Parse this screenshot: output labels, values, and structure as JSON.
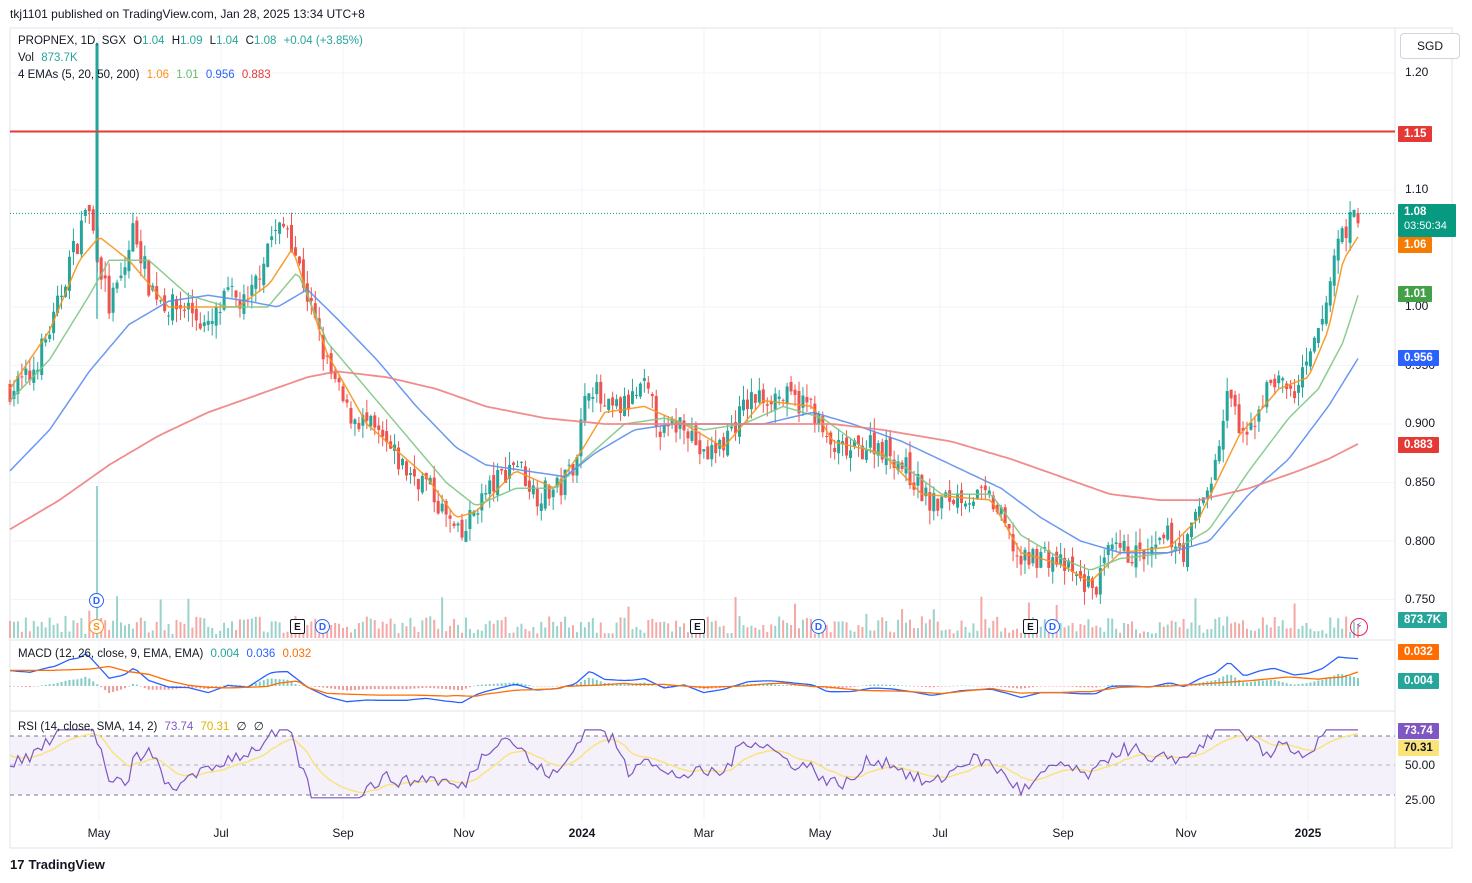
{
  "publisher": "tkj1101 published on TradingView.com, Jan 28, 2025 13:34 UTC+8",
  "brand": "TradingView",
  "brand_logo": "17",
  "currency_button": "SGD",
  "legend": {
    "symbol_line": "PROPNEX, 1D, SGX",
    "ohlc": {
      "o_label": "O",
      "o": "1.04",
      "h_label": "H",
      "h": "1.09",
      "l_label": "L",
      "l": "1.04",
      "c_label": "C",
      "c": "1.08",
      "chg": "+0.04 (+3.85%)"
    },
    "vol_label": "Vol",
    "vol_value": "873.7K",
    "ema_label": "4 EMAs (5, 20, 50, 200)",
    "ema_values": [
      "1.06",
      "1.01",
      "0.956",
      "0.883"
    ],
    "macd_label": "MACD (12, 26, close, 9, EMA, EMA)",
    "macd_values": [
      "0.004",
      "0.036",
      "0.032"
    ],
    "rsi_label": "RSI (14, close, SMA, 14, 2)",
    "rsi_values": [
      "73.74",
      "70.31",
      "∅",
      "∅"
    ]
  },
  "price_tags": {
    "resistance": "1.15",
    "last": "1.08",
    "countdown": "03:50:34",
    "ema5": "1.06",
    "ema20": "1.01",
    "ema50": "0.956",
    "ema200": "0.883",
    "volume": "873.7K",
    "macd_signal": "0.032",
    "macd_hist": "0.004",
    "rsi": "73.74",
    "rsi_ma": "70.31"
  },
  "y_axis_labels": [
    "1.20",
    "1.10",
    "1.00",
    "0.950",
    "0.900",
    "0.850",
    "0.800",
    "0.750"
  ],
  "rsi_axis_labels": [
    "50.00",
    "25.00"
  ],
  "x_axis_labels": [
    "May",
    "Jul",
    "Sep",
    "Nov",
    "2024",
    "Mar",
    "May",
    "Jul",
    "Sep",
    "Nov",
    "2025"
  ],
  "events": [
    {
      "kind": "d",
      "label": "D"
    },
    {
      "kind": "s",
      "label": "S"
    },
    {
      "kind": "e",
      "label": "E"
    },
    {
      "kind": "d",
      "label": "D"
    },
    {
      "kind": "e",
      "label": "E"
    },
    {
      "kind": "d",
      "label": "D"
    },
    {
      "kind": "e",
      "label": "E"
    },
    {
      "kind": "d",
      "label": "D"
    }
  ],
  "colors": {
    "up": "#26a69a",
    "down": "#ef5350",
    "ema5": "#f7931a",
    "ema20": "#81c784",
    "ema50": "#5b8def",
    "ema200": "#f08080",
    "resistance": "#e53935",
    "macd": "#2962ff",
    "signal": "#ff6d00",
    "rsi": "#7e57c2",
    "rsi_ma": "#f9e37a"
  },
  "chart_data": {
    "type": "candlestick",
    "symbol": "PROPNEX",
    "interval": "1D",
    "exchange": "SGX",
    "y_range": [
      0.735,
      1.225
    ],
    "resistance_level": 1.15,
    "anchors": {
      "close": [
        [
          0,
          0.93
        ],
        [
          20,
          0.94
        ],
        [
          45,
          0.99
        ],
        [
          60,
          1.04
        ],
        [
          70,
          1.06
        ],
        [
          77,
          1.09
        ],
        [
          85,
          1.06
        ],
        [
          100,
          1.0
        ],
        [
          115,
          1.03
        ],
        [
          125,
          1.07
        ],
        [
          140,
          1.02
        ],
        [
          160,
          1.0
        ],
        [
          180,
          1.0
        ],
        [
          200,
          0.98
        ],
        [
          220,
          1.01
        ],
        [
          240,
          1.0
        ],
        [
          262,
          1.06
        ],
        [
          280,
          1.07
        ],
        [
          300,
          1.01
        ],
        [
          320,
          0.95
        ],
        [
          340,
          0.91
        ],
        [
          360,
          0.9
        ],
        [
          380,
          0.88
        ],
        [
          400,
          0.86
        ],
        [
          420,
          0.85
        ],
        [
          440,
          0.82
        ],
        [
          455,
          0.8
        ],
        [
          470,
          0.83
        ],
        [
          490,
          0.85
        ],
        [
          510,
          0.87
        ],
        [
          530,
          0.84
        ],
        [
          555,
          0.845
        ],
        [
          570,
          0.87
        ],
        [
          585,
          0.94
        ],
        [
          600,
          0.91
        ],
        [
          620,
          0.915
        ],
        [
          640,
          0.93
        ],
        [
          660,
          0.89
        ],
        [
          680,
          0.905
        ],
        [
          700,
          0.87
        ],
        [
          720,
          0.885
        ],
        [
          745,
          0.92
        ],
        [
          770,
          0.925
        ],
        [
          790,
          0.92
        ],
        [
          810,
          0.915
        ],
        [
          825,
          0.88
        ],
        [
          850,
          0.875
        ],
        [
          870,
          0.885
        ],
        [
          890,
          0.875
        ],
        [
          910,
          0.855
        ],
        [
          930,
          0.83
        ],
        [
          960,
          0.84
        ],
        [
          990,
          0.835
        ],
        [
          1005,
          0.81
        ],
        [
          1020,
          0.78
        ],
        [
          1040,
          0.79
        ],
        [
          1060,
          0.78
        ],
        [
          1080,
          0.765
        ],
        [
          1095,
          0.76
        ],
        [
          1110,
          0.79
        ],
        [
          1130,
          0.79
        ],
        [
          1150,
          0.785
        ],
        [
          1170,
          0.805
        ],
        [
          1185,
          0.79
        ],
        [
          1200,
          0.83
        ],
        [
          1215,
          0.86
        ],
        [
          1230,
          0.93
        ],
        [
          1245,
          0.88
        ],
        [
          1260,
          0.915
        ],
        [
          1275,
          0.94
        ],
        [
          1295,
          0.925
        ],
        [
          1310,
          0.95
        ],
        [
          1325,
          0.99
        ],
        [
          1340,
          1.06
        ],
        [
          1350,
          1.07
        ],
        [
          1360,
          1.08
        ]
      ]
    },
    "ema_anchors": {
      "ema5": [
        [
          0,
          0.93
        ],
        [
          40,
          0.98
        ],
        [
          70,
          1.04
        ],
        [
          90,
          1.06
        ],
        [
          120,
          1.04
        ],
        [
          160,
          1.0
        ],
        [
          200,
          1.0
        ],
        [
          230,
          1.0
        ],
        [
          262,
          1.02
        ],
        [
          285,
          1.05
        ],
        [
          320,
          0.96
        ],
        [
          360,
          0.9
        ],
        [
          420,
          0.855
        ],
        [
          450,
          0.82
        ],
        [
          470,
          0.825
        ],
        [
          510,
          0.86
        ],
        [
          550,
          0.845
        ],
        [
          575,
          0.875
        ],
        [
          600,
          0.91
        ],
        [
          640,
          0.915
        ],
        [
          680,
          0.9
        ],
        [
          720,
          0.88
        ],
        [
          760,
          0.92
        ],
        [
          810,
          0.915
        ],
        [
          830,
          0.885
        ],
        [
          880,
          0.875
        ],
        [
          920,
          0.84
        ],
        [
          990,
          0.835
        ],
        [
          1020,
          0.79
        ],
        [
          1060,
          0.78
        ],
        [
          1090,
          0.765
        ],
        [
          1120,
          0.79
        ],
        [
          1170,
          0.795
        ],
        [
          1200,
          0.82
        ],
        [
          1240,
          0.89
        ],
        [
          1280,
          0.93
        ],
        [
          1310,
          0.94
        ],
        [
          1330,
          0.98
        ],
        [
          1345,
          1.04
        ],
        [
          1360,
          1.06
        ]
      ],
      "ema20": [
        [
          0,
          0.92
        ],
        [
          40,
          0.955
        ],
        [
          80,
          1.01
        ],
        [
          100,
          1.04
        ],
        [
          140,
          1.04
        ],
        [
          180,
          1.01
        ],
        [
          220,
          1.0
        ],
        [
          260,
          1.0
        ],
        [
          290,
          1.03
        ],
        [
          320,
          0.97
        ],
        [
          360,
          0.93
        ],
        [
          400,
          0.89
        ],
        [
          440,
          0.85
        ],
        [
          470,
          0.83
        ],
        [
          510,
          0.845
        ],
        [
          550,
          0.845
        ],
        [
          580,
          0.87
        ],
        [
          620,
          0.9
        ],
        [
          660,
          0.905
        ],
        [
          700,
          0.895
        ],
        [
          740,
          0.9
        ],
        [
          780,
          0.915
        ],
        [
          820,
          0.905
        ],
        [
          860,
          0.88
        ],
        [
          900,
          0.865
        ],
        [
          940,
          0.84
        ],
        [
          990,
          0.84
        ],
        [
          1020,
          0.805
        ],
        [
          1060,
          0.785
        ],
        [
          1090,
          0.775
        ],
        [
          1120,
          0.785
        ],
        [
          1170,
          0.79
        ],
        [
          1210,
          0.81
        ],
        [
          1250,
          0.86
        ],
        [
          1290,
          0.905
        ],
        [
          1320,
          0.93
        ],
        [
          1345,
          0.97
        ],
        [
          1360,
          1.01
        ]
      ],
      "ema50": [
        [
          0,
          0.86
        ],
        [
          40,
          0.895
        ],
        [
          80,
          0.945
        ],
        [
          120,
          0.985
        ],
        [
          160,
          1.005
        ],
        [
          200,
          1.01
        ],
        [
          240,
          1.005
        ],
        [
          270,
          1.0
        ],
        [
          300,
          1.015
        ],
        [
          330,
          0.99
        ],
        [
          370,
          0.955
        ],
        [
          410,
          0.915
        ],
        [
          450,
          0.88
        ],
        [
          480,
          0.865
        ],
        [
          520,
          0.86
        ],
        [
          560,
          0.855
        ],
        [
          590,
          0.875
        ],
        [
          630,
          0.895
        ],
        [
          670,
          0.9
        ],
        [
          710,
          0.9
        ],
        [
          760,
          0.9
        ],
        [
          810,
          0.91
        ],
        [
          850,
          0.9
        ],
        [
          900,
          0.885
        ],
        [
          950,
          0.865
        ],
        [
          1000,
          0.845
        ],
        [
          1040,
          0.82
        ],
        [
          1080,
          0.8
        ],
        [
          1120,
          0.79
        ],
        [
          1170,
          0.79
        ],
        [
          1210,
          0.8
        ],
        [
          1250,
          0.84
        ],
        [
          1290,
          0.87
        ],
        [
          1330,
          0.915
        ],
        [
          1360,
          0.956
        ]
      ],
      "ema200": [
        [
          0,
          0.81
        ],
        [
          50,
          0.835
        ],
        [
          100,
          0.865
        ],
        [
          150,
          0.89
        ],
        [
          200,
          0.91
        ],
        [
          250,
          0.925
        ],
        [
          300,
          0.94
        ],
        [
          330,
          0.945
        ],
        [
          380,
          0.94
        ],
        [
          430,
          0.93
        ],
        [
          480,
          0.915
        ],
        [
          540,
          0.905
        ],
        [
          600,
          0.9
        ],
        [
          660,
          0.9
        ],
        [
          720,
          0.9
        ],
        [
          780,
          0.9
        ],
        [
          830,
          0.9
        ],
        [
          880,
          0.895
        ],
        [
          950,
          0.885
        ],
        [
          1010,
          0.87
        ],
        [
          1060,
          0.855
        ],
        [
          1110,
          0.84
        ],
        [
          1160,
          0.835
        ],
        [
          1200,
          0.835
        ],
        [
          1250,
          0.845
        ],
        [
          1300,
          0.86
        ],
        [
          1330,
          0.87
        ],
        [
          1360,
          0.883
        ]
      ]
    }
  }
}
